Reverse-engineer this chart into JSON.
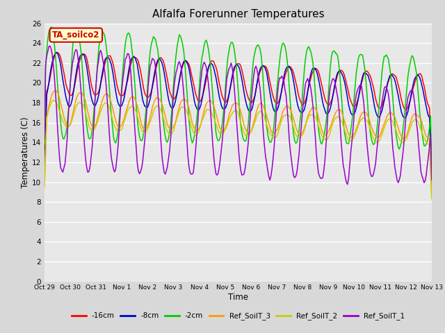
{
  "title": "Alfalfa Forerunner Temperatures",
  "xlabel": "Time",
  "ylabel": "Temperatures (C)",
  "annotation_text": "TA_soilco2",
  "annotation_bg": "#ffffcc",
  "annotation_border": "#cc0000",
  "ylim": [
    0,
    26
  ],
  "yticks": [
    0,
    2,
    4,
    6,
    8,
    10,
    12,
    14,
    16,
    18,
    20,
    22,
    24,
    26
  ],
  "plot_bg": "#d8d8d8",
  "upper_bg": "#e8e8e8",
  "grid_color": "#ffffff",
  "series": [
    {
      "label": "-16cm",
      "color": "#ff0000"
    },
    {
      "label": "-8cm",
      "color": "#0000cc"
    },
    {
      "label": "-2cm",
      "color": "#00cc00"
    },
    {
      "label": "Ref_SoilT_3",
      "color": "#ff9900"
    },
    {
      "label": "Ref_SoilT_2",
      "color": "#cccc00"
    },
    {
      "label": "Ref_SoilT_1",
      "color": "#9900cc"
    }
  ],
  "xtick_labels": [
    "Oct 29",
    "Oct 30",
    "Oct 31",
    "Nov 1",
    "Nov 2",
    "Nov 3",
    "Nov 4",
    "Nov 5",
    "Nov 6",
    "Nov 7",
    "Nov 8",
    "Nov 9",
    "Nov 10",
    "Nov 11",
    "Nov 12",
    "Nov 13"
  ],
  "n_points": 360,
  "period_days": 15
}
